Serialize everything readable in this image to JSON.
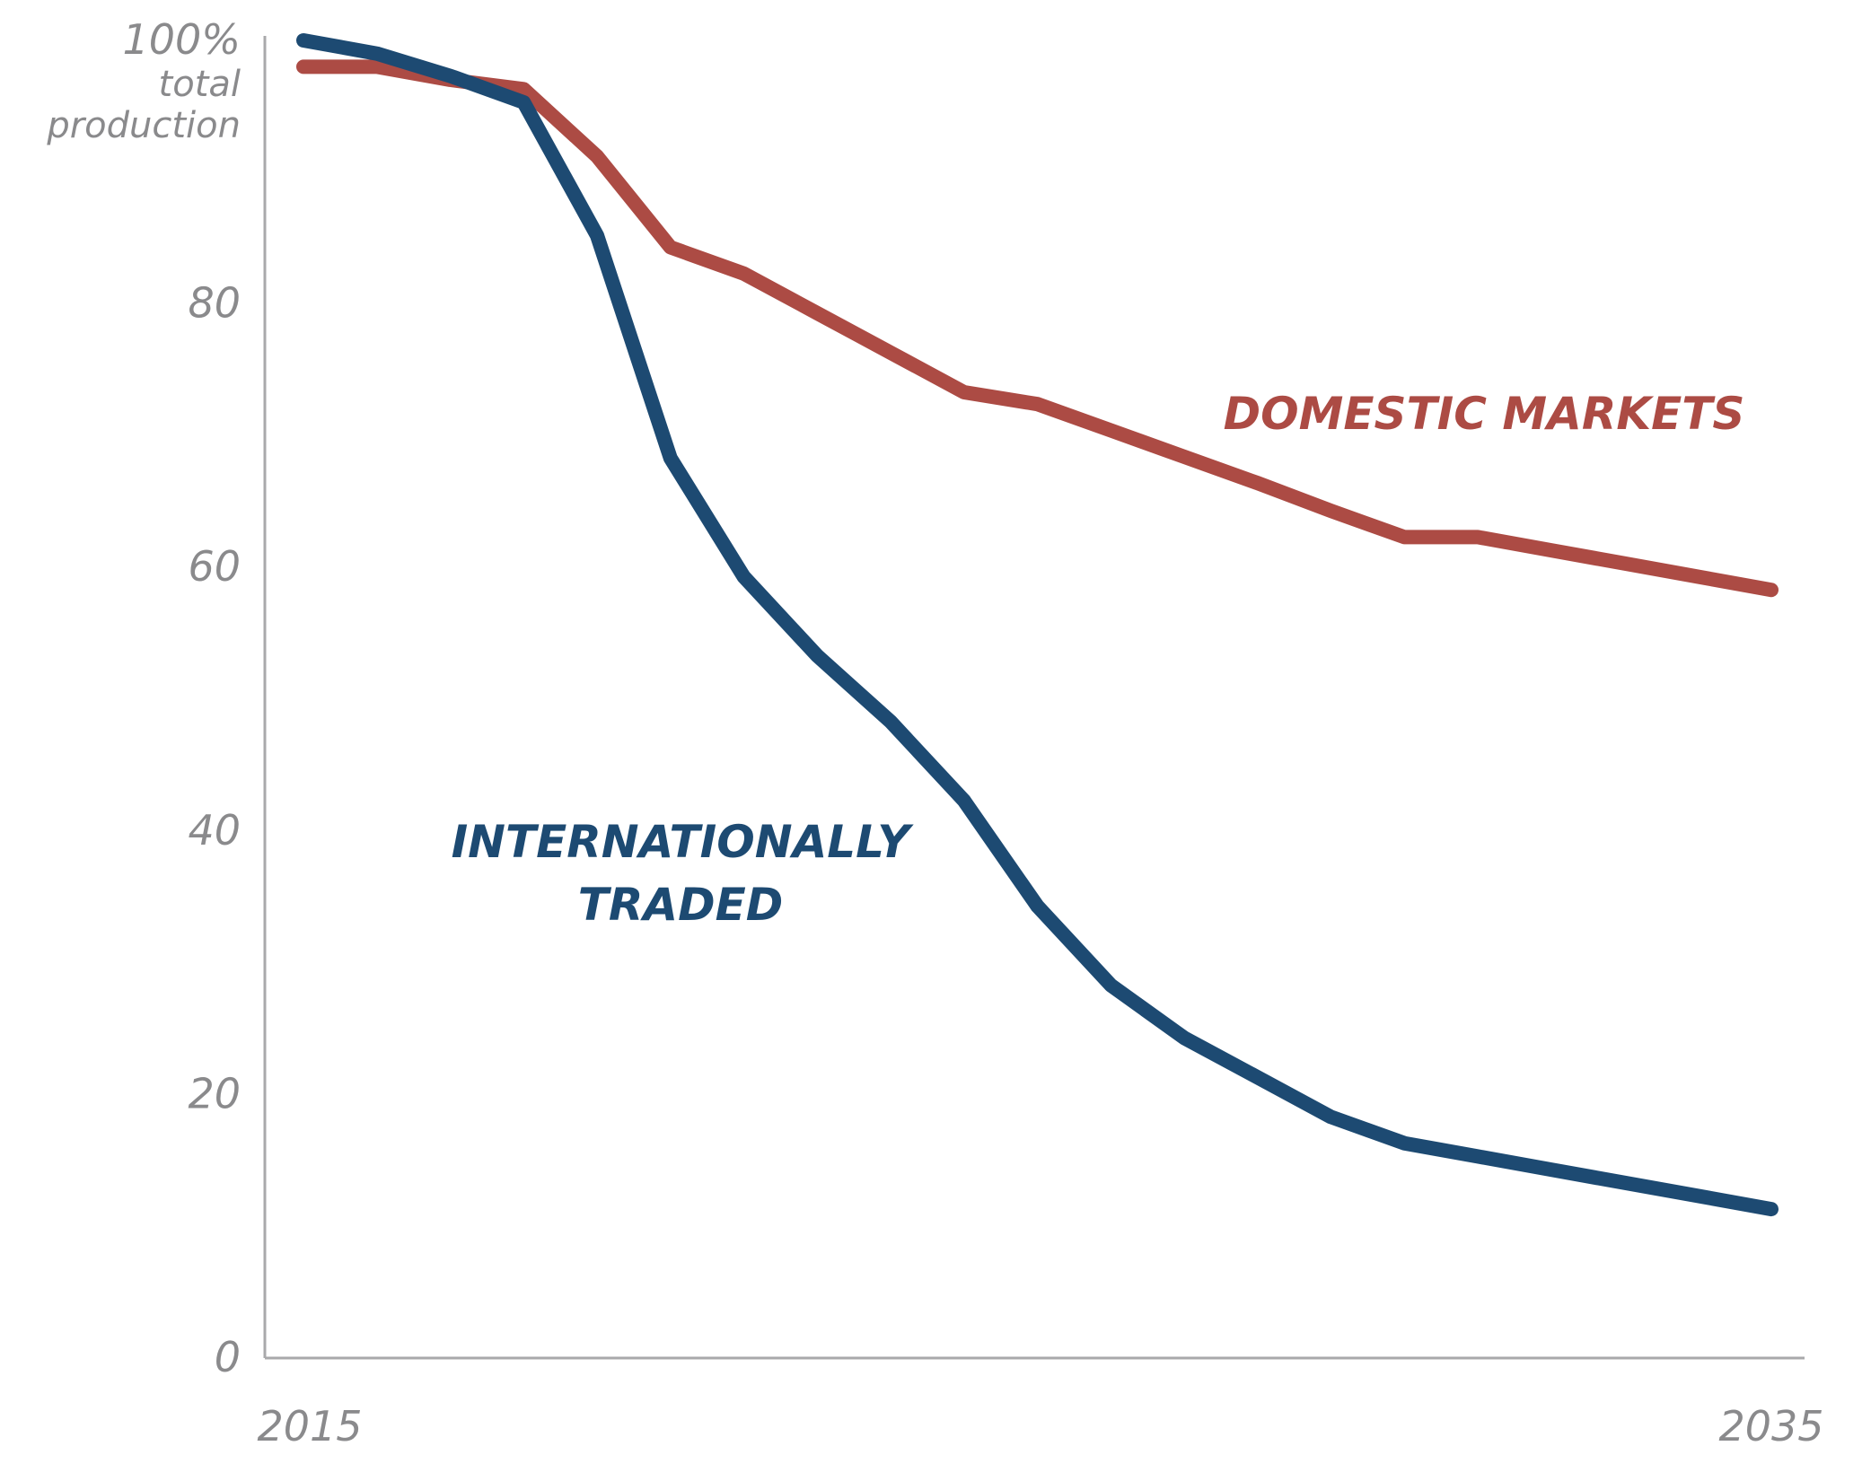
{
  "chart_data": {
    "type": "line",
    "title": "",
    "xlabel": "",
    "ylabel": "",
    "ylim": [
      0,
      100
    ],
    "xlim": [
      2015,
      2035
    ],
    "grid": false,
    "legend": "inline labels",
    "y_ticks": [
      {
        "value": 100,
        "label": "100%"
      },
      {
        "value": 80,
        "label": "80"
      },
      {
        "value": 60,
        "label": "60"
      },
      {
        "value": 40,
        "label": "40"
      },
      {
        "value": 20,
        "label": "20"
      },
      {
        "value": 0,
        "label": "0"
      }
    ],
    "y_unit_label": [
      "total",
      "production"
    ],
    "x_ticks": [
      {
        "value": 2015,
        "label": "2015"
      },
      {
        "value": 2035,
        "label": "2035"
      }
    ],
    "x": [
      2015,
      2016,
      2017,
      2018,
      2019,
      2020,
      2021,
      2022,
      2023,
      2024,
      2025,
      2026,
      2027,
      2028,
      2029,
      2030,
      2031,
      2032,
      2033,
      2034,
      2035
    ],
    "series": [
      {
        "name": "DOMESTIC MARKETS",
        "color": "#ac4b44",
        "label_lines": [
          "DOMESTIC MARKETS"
        ],
        "values": [
          98,
          98,
          97,
          96.3,
          91.2,
          84.3,
          82.3,
          79.3,
          76.3,
          73.3,
          72.4,
          70.4,
          68.4,
          66.4,
          64.3,
          62.3,
          62.3,
          61.3,
          60.3,
          59.3,
          58.3
        ]
      },
      {
        "name": "INTERNATIONALLY TRADED",
        "color": "#1d4a72",
        "label_lines": [
          "INTERNATIONALLY",
          "TRADED"
        ],
        "values": [
          100,
          99,
          97.3,
          95.3,
          85.2,
          68.3,
          59.3,
          53.3,
          48.3,
          42.3,
          34.3,
          28.3,
          24.3,
          21.3,
          18.3,
          16.3,
          15.3,
          14.3,
          13.3,
          12.3,
          11.3
        ]
      }
    ]
  }
}
